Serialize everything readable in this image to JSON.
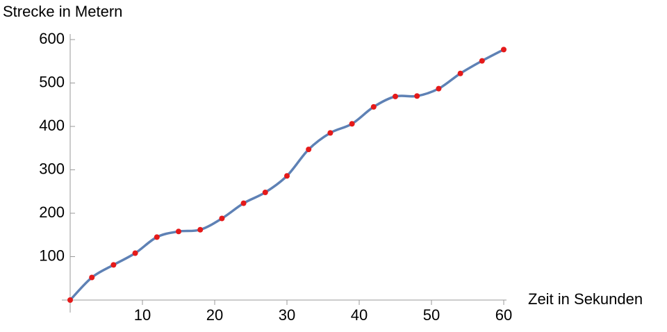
{
  "chart_data": {
    "type": "line",
    "y_label": "Strecke in Metern",
    "x_label": "Zeit in Sekunden",
    "x": [
      0,
      3,
      6,
      9,
      12,
      15,
      18,
      21,
      24,
      27,
      30,
      33,
      36,
      39,
      42,
      45,
      48,
      51,
      54,
      57,
      60
    ],
    "series": [
      {
        "color": "#5e81b5",
        "values": [
          0,
          52,
          81,
          108,
          145,
          158,
          162,
          188,
          223,
          248,
          286,
          347,
          385,
          406,
          445,
          469,
          470,
          487,
          522,
          551,
          577
        ]
      }
    ],
    "marker_color": "#e51a1a",
    "xlim": [
      0,
      60
    ],
    "ylim": [
      0,
      600
    ],
    "xticks": [
      10,
      20,
      30,
      40,
      50,
      60
    ],
    "yticks": [
      100,
      200,
      300,
      400,
      500,
      600
    ]
  }
}
